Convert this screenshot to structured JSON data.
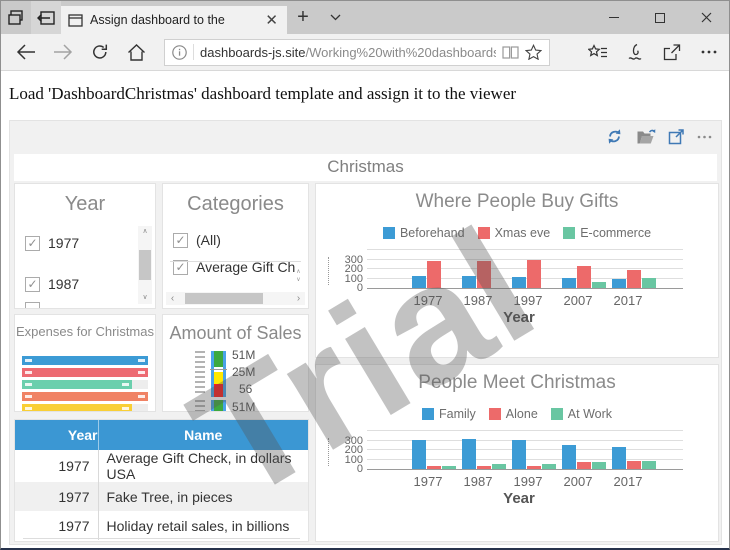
{
  "browser": {
    "tab": {
      "title": "Assign dashboard to the"
    },
    "tab_icons": [
      "tabs-set-aside-icon",
      "set-tab-aside-icon",
      "page-icon",
      "close-icon",
      "new-tab-icon",
      "tab-dropdown-icon"
    ],
    "nav_icons": [
      "back-icon",
      "forward-icon",
      "refresh-icon",
      "home-icon"
    ],
    "address": {
      "domain": "dashboards-js.site",
      "path": "/Working%20with%20dashboards"
    },
    "address_icons": [
      "info-icon",
      "reading-view-icon",
      "favorite-star-icon"
    ],
    "toolbar_icons": [
      "favorites-hub-icon",
      "web-note-pen-icon",
      "share-icon",
      "more-icon"
    ],
    "window_icons": [
      "minimize-icon",
      "maximize-icon",
      "close-icon"
    ]
  },
  "page": {
    "heading": "Load 'DashboardChristmas' dashboard template and assign it to the viewer"
  },
  "dashboard": {
    "title": "Christmas",
    "watermark": "Trial",
    "toolbar_icons": [
      "refresh-sync-icon",
      "open-dashboard-icon",
      "maximize-dashboard-icon",
      "more-options-icon"
    ],
    "filters": {
      "year": {
        "title": "Year",
        "items": [
          {
            "label": "1977",
            "checked": true
          },
          {
            "label": "1987",
            "checked": true
          }
        ]
      },
      "categories": {
        "title": "Categories",
        "items": [
          {
            "label": "(All)",
            "checked": true
          },
          {
            "label": "Average Gift Ch",
            "checked": true
          }
        ]
      }
    }
  },
  "chart_data": [
    {
      "id": "where_people_buy_gifts",
      "type": "bar",
      "title": "Where People Buy Gifts",
      "categories": [
        "1977",
        "1987",
        "1997",
        "2007",
        "2017"
      ],
      "series": [
        {
          "name": "Beforehand",
          "color": "#3c9bd5",
          "values": [
            130,
            130,
            120,
            105,
            95
          ]
        },
        {
          "name": "Xmas eve",
          "color": "#ed6a6a",
          "values": [
            280,
            285,
            295,
            235,
            185
          ]
        },
        {
          "name": "E-commerce",
          "color": "#69c6a2",
          "values": [
            0,
            0,
            0,
            60,
            110
          ]
        }
      ],
      "xlabel": "Year",
      "ylabel": "",
      "yticks": [
        0,
        100,
        200,
        300
      ],
      "ylim": [
        0,
        400
      ],
      "legend_position": "top",
      "grid": true
    },
    {
      "id": "people_meet_christmas",
      "type": "bar",
      "title": "People Meet Christmas",
      "categories": [
        "1977",
        "1987",
        "1997",
        "2007",
        "2017"
      ],
      "series": [
        {
          "name": "Family",
          "color": "#3c9bd5",
          "values": [
            310,
            320,
            300,
            255,
            235
          ]
        },
        {
          "name": "Alone",
          "color": "#ed6a6a",
          "values": [
            35,
            35,
            35,
            70,
            85
          ]
        },
        {
          "name": "At Work",
          "color": "#69c6a2",
          "values": [
            35,
            55,
            55,
            70,
            80
          ]
        }
      ],
      "xlabel": "Year",
      "ylabel": "",
      "yticks": [
        0,
        100,
        200,
        300
      ],
      "ylim": [
        0,
        400
      ],
      "legend_position": "top",
      "grid": true
    },
    {
      "id": "expenses_for_christmas",
      "type": "bar",
      "title": "Expenses for Christmas",
      "orientation": "horizontal",
      "bars": [
        {
          "color": "#3c9bd5",
          "pct": 100
        },
        {
          "color": "#ed6a72",
          "pct": 100
        },
        {
          "color": "#6bcfad",
          "pct": 87
        },
        {
          "color": "#f08264",
          "pct": 100
        },
        {
          "color": "#f9cf35",
          "pct": 87
        }
      ]
    },
    {
      "id": "amount_of_sales",
      "type": "gauge",
      "title": "Amount of Sales",
      "labels": [
        "51M",
        "25M",
        "56",
        "51M"
      ],
      "colors": {
        "frame": "#4aa3e8",
        "green": "#3da93f",
        "yellow": "#ffe800",
        "red": "#ff1c1c"
      }
    },
    {
      "id": "sales_table",
      "type": "table",
      "headers": [
        "Year",
        "Name"
      ],
      "rows": [
        [
          "1977",
          "Average Gift Check, in dollars USA"
        ],
        [
          "1977",
          "Fake Tree, in pieces"
        ],
        [
          "1977",
          "Holiday retail sales, in billions"
        ]
      ],
      "header_color": "#3b97d3"
    }
  ]
}
